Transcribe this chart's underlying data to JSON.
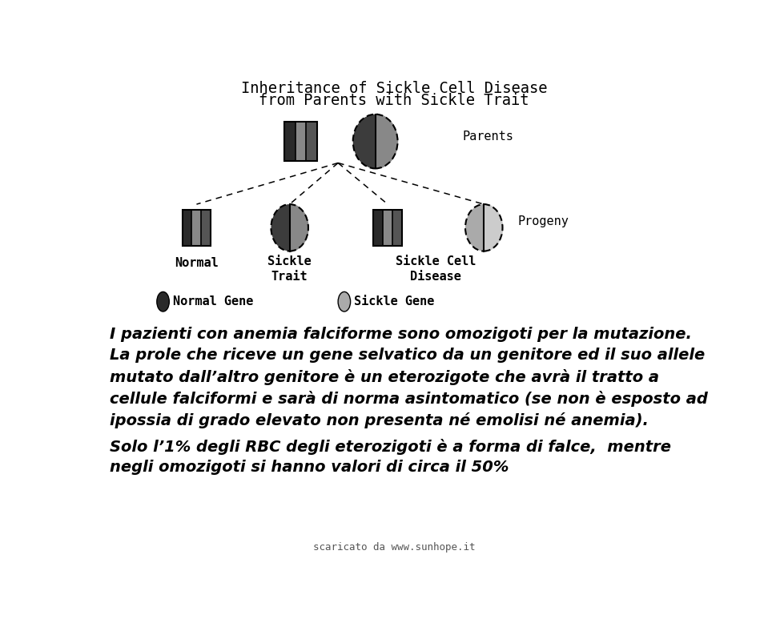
{
  "title_line1": "Inheritance of Sickle Cell Disease",
  "title_line2": "from Parents with Sickle Trait",
  "bg_color": "#ffffff",
  "text1": "I pazienti con anemia falciforme sono omozigoti per la mutazione.",
  "text2_line1": "La prole che riceve un gene selvatico da un genitore ed il suo allele",
  "text2_line2": "mutato dall’altro genitore è un eterozigote che avrà il tratto a",
  "text2_line3": "cellule falciformi e sarà di norma asintomatico (se non è esposto ad",
  "text2_line4": "ipossia di grado elevato non presenta né emolisi né anemia).",
  "text3_line1": "Solo l’1% degli RBC degli eterozigoti è a forma di falce,  mentre",
  "text3_line2": "negli omozigoti si hanno valori di circa il 50%",
  "footer": "scaricato da www.sunhope.it",
  "label_parents": "Parents",
  "label_progeny": "Progeny",
  "label_normal": "Normal",
  "label_sickle_trait": "Sickle\nTrait",
  "label_sickle_cell": "Sickle Cell\nDisease",
  "label_normal_gene": "Normal Gene",
  "label_sickle_gene": "Sickle Gene",
  "dark1": "#3c3c3c",
  "dark2": "#6a6a6a",
  "light1": "#aaaaaa",
  "light2": "#cccccc"
}
